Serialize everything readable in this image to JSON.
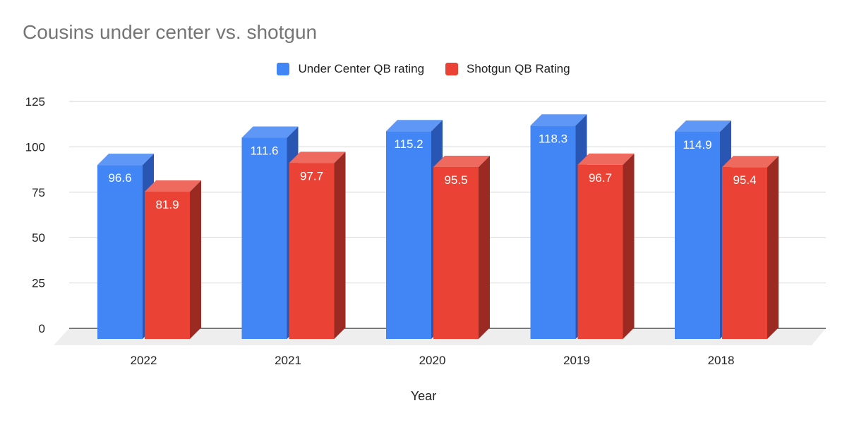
{
  "chart_data": {
    "type": "bar",
    "title": "Cousins under center vs. shotgun",
    "xlabel": "Year",
    "ylabel": "",
    "categories": [
      "2022",
      "2021",
      "2020",
      "2019",
      "2018"
    ],
    "series": [
      {
        "name": "Under Center QB rating",
        "color": "#4285f4",
        "side_color": "#2a56b3",
        "top_color": "#5f97f6",
        "values": [
          96.6,
          111.6,
          115.2,
          118.3,
          114.9
        ]
      },
      {
        "name": "Shotgun QB Rating",
        "color": "#ea4335",
        "side_color": "#9a2a22",
        "top_color": "#ee6a5e",
        "values": [
          81.9,
          97.7,
          95.5,
          96.7,
          95.4
        ]
      }
    ],
    "ylim": [
      0,
      125
    ],
    "yticks": [
      0,
      25,
      50,
      75,
      100,
      125
    ],
    "grid": true,
    "legend_position": "top",
    "three_d": true
  }
}
